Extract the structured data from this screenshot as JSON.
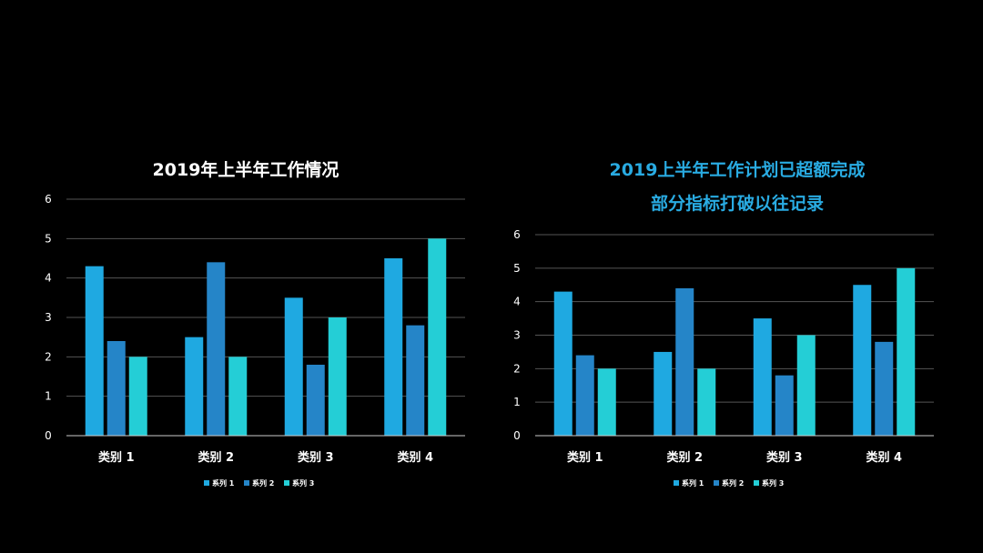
{
  "colors": {
    "background": "#000000",
    "series1": "#1fa9e1",
    "series2": "#2585c8",
    "series3": "#24ced6",
    "grid": "#555555",
    "axis": "#cccccc",
    "text": "#ffffff",
    "accent_title": "#29abe2"
  },
  "chart_data": [
    {
      "type": "bar",
      "title": "2019年上半年工作情况",
      "categories": [
        "类别 1",
        "类别 2",
        "类别 3",
        "类别 4"
      ],
      "series": [
        {
          "name": "系列 1",
          "values": [
            4.3,
            2.5,
            3.5,
            4.5
          ]
        },
        {
          "name": "系列 2",
          "values": [
            2.4,
            4.4,
            1.8,
            2.8
          ]
        },
        {
          "name": "系列 3",
          "values": [
            2,
            2,
            3,
            5
          ]
        }
      ],
      "ylim": [
        0,
        6
      ],
      "yticks": [
        "0",
        "1",
        "2",
        "3",
        "4",
        "5",
        "6"
      ],
      "grid": true,
      "legend": "bottom"
    },
    {
      "type": "bar",
      "title_lines": [
        "2019上半年工作计划已超额完成",
        "部分指标打破以往记录"
      ],
      "categories": [
        "类别 1",
        "类别 2",
        "类别 3",
        "类别 4"
      ],
      "series": [
        {
          "name": "系列 1",
          "values": [
            4.3,
            2.5,
            3.5,
            4.5
          ]
        },
        {
          "name": "系列 2",
          "values": [
            2.4,
            4.4,
            1.8,
            2.8
          ]
        },
        {
          "name": "系列 3",
          "values": [
            2,
            2,
            3,
            5
          ]
        }
      ],
      "ylim": [
        0,
        6
      ],
      "yticks": [
        "0",
        "1",
        "2",
        "3",
        "4",
        "5",
        "6"
      ],
      "grid": true,
      "legend": "bottom"
    }
  ]
}
